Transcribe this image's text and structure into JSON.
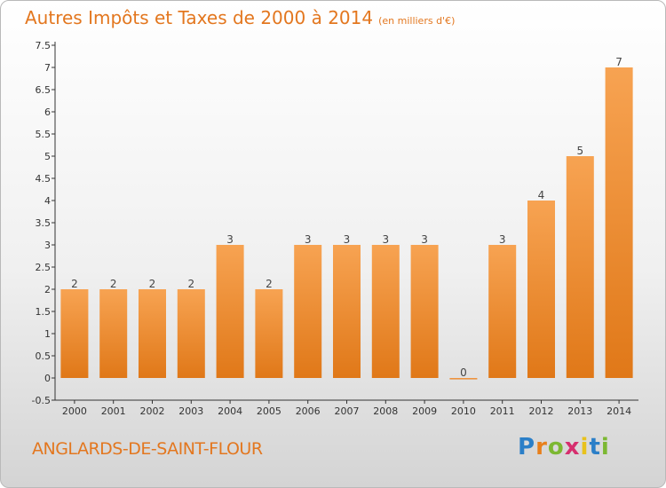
{
  "title": "Autres Impôts et Taxes de 2000 à 2014",
  "subtitle": "(en milliers d'€)",
  "commune": "ANGLARDS-DE-SAINT-FLOUR",
  "logo": {
    "letters": [
      "P",
      "r",
      "o",
      "x",
      "i",
      "t",
      "i"
    ],
    "colors": [
      "#2b7fc8",
      "#e8801c",
      "#7cb832",
      "#d62f6e",
      "#e8c21c",
      "#2b7fc8",
      "#7cb832"
    ]
  },
  "colors": {
    "bar_top": "#f7a352",
    "bar_bottom": "#e07818",
    "accent": "#e3771f"
  },
  "chart_data": {
    "type": "bar",
    "categories": [
      "2000",
      "2001",
      "2002",
      "2003",
      "2004",
      "2005",
      "2006",
      "2007",
      "2008",
      "2009",
      "2010",
      "2011",
      "2012",
      "2013",
      "2014"
    ],
    "values": [
      2,
      2,
      2,
      2,
      3,
      2,
      3,
      3,
      3,
      3,
      0,
      3,
      4,
      5,
      7
    ],
    "data_labels": [
      "2",
      "2",
      "2",
      "2",
      "3",
      "2",
      "3",
      "3",
      "3",
      "3",
      "0",
      "3",
      "4",
      "5",
      "7"
    ],
    "ylim": [
      -0.5,
      7.5
    ],
    "yticks": [
      "-0.5",
      "0",
      "0.5",
      "1",
      "1.5",
      "2",
      "2.5",
      "3",
      "3.5",
      "4",
      "4.5",
      "5",
      "5.5",
      "6",
      "6.5",
      "7",
      "7.5"
    ],
    "ytick_values": [
      -0.5,
      0,
      0.5,
      1,
      1.5,
      2,
      2.5,
      3,
      3.5,
      4,
      4.5,
      5,
      5.5,
      6,
      6.5,
      7,
      7.5
    ],
    "grid": false,
    "xlabel": "",
    "ylabel": ""
  }
}
